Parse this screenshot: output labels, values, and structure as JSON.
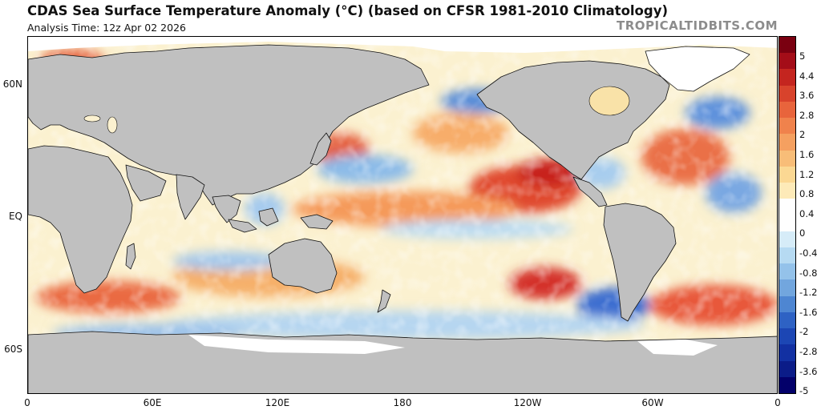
{
  "header": {
    "title": "CDAS Sea Surface Temperature Anomaly (°C) (based on CFSR 1981-2010 Climatology)",
    "subtitle": "Analysis Time: 12z Apr 02 2026",
    "watermark": "TROPICALTIDBITS.COM"
  },
  "map": {
    "projection": "equirectangular",
    "lon_range": [
      0,
      360
    ],
    "lat_range": [
      -80,
      82
    ],
    "land_color": "#c0c0c0",
    "ice_color": "#ffffff",
    "lat_ticks": [
      {
        "label": "60N",
        "lat": 60
      },
      {
        "label": "EQ",
        "lat": 0
      },
      {
        "label": "60S",
        "lat": -60
      }
    ],
    "lon_ticks": [
      {
        "label": "0",
        "lon": 0
      },
      {
        "label": "60E",
        "lon": 60
      },
      {
        "label": "120E",
        "lon": 120
      },
      {
        "label": "180",
        "lon": 180
      },
      {
        "label": "120W",
        "lon": 240
      },
      {
        "label": "60W",
        "lon": 300
      },
      {
        "label": "0",
        "lon": 360
      }
    ]
  },
  "colorbar": {
    "labels": [
      "5",
      "4.4",
      "3.6",
      "2.8",
      "2",
      "1.6",
      "1.2",
      "0.8",
      "0.4",
      "0",
      "-0.4",
      "-0.8",
      "-1.2",
      "-1.6",
      "-2",
      "-2.8",
      "-3.6",
      "-5"
    ],
    "colors": [
      "#7a0010",
      "#a40d18",
      "#c4251f",
      "#d8432c",
      "#e8643c",
      "#f0824c",
      "#f5a060",
      "#f8bd78",
      "#fbd893",
      "#fdeab8",
      "#fefefe",
      "#fefefe",
      "#d6ecf8",
      "#b6daf2",
      "#94c2ea",
      "#72a6de",
      "#4e86d2",
      "#2e62c4",
      "#1c46b4",
      "#1230a2",
      "#0b1c88",
      "#03006a"
    ]
  }
}
